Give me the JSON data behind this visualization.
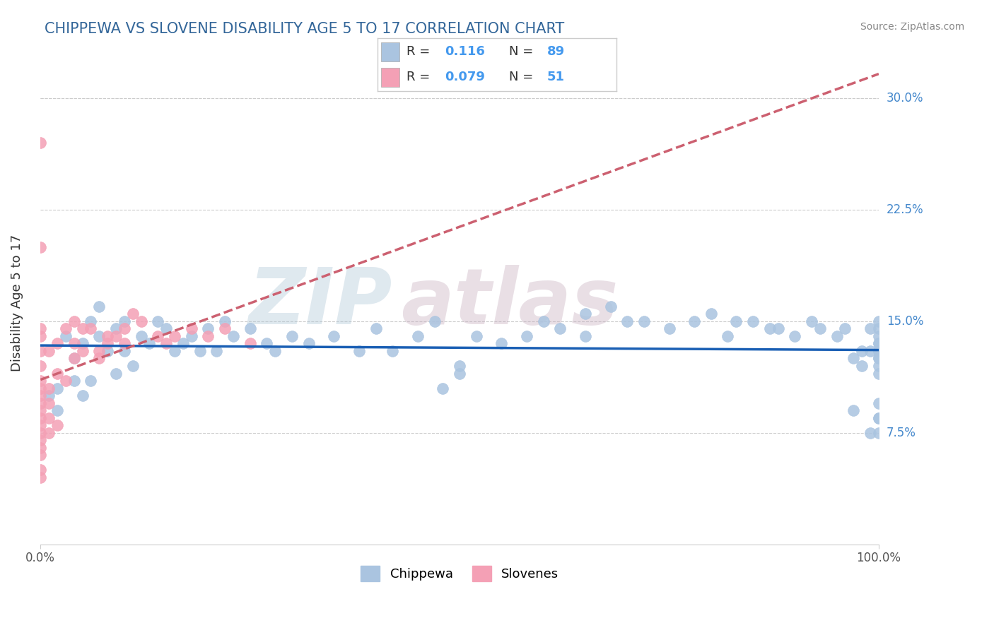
{
  "title": "CHIPPEWA VS SLOVENE DISABILITY AGE 5 TO 17 CORRELATION CHART",
  "source_text": "Source: ZipAtlas.com",
  "ylabel": "Disability Age 5 to 17",
  "xlim": [
    0,
    100
  ],
  "ylim": [
    0,
    32.5
  ],
  "yticks": [
    7.5,
    15.0,
    22.5,
    30.0
  ],
  "xticks": [
    0,
    100
  ],
  "xtick_labels": [
    "0.0%",
    "100.0%"
  ],
  "right_ytick_labels": [
    "7.5%",
    "15.0%",
    "22.5%",
    "30.0%"
  ],
  "legend_label1": "Chippewa",
  "legend_label2": "Slovenes",
  "R1": "0.116",
  "N1": "89",
  "R2": "0.079",
  "N2": "51",
  "color1": "#aac4e0",
  "color2": "#f4a0b5",
  "trendline1_color": "#1a5fb4",
  "trendline2_color": "#cc6070",
  "background_color": "#ffffff",
  "watermark_zip_color": "#b0c8d8",
  "watermark_atlas_color": "#c8b0c0",
  "chippewa_x": [
    1,
    2,
    2,
    3,
    4,
    4,
    5,
    5,
    6,
    6,
    7,
    7,
    8,
    9,
    9,
    10,
    10,
    11,
    12,
    13,
    14,
    15,
    16,
    17,
    18,
    19,
    20,
    21,
    22,
    23,
    25,
    27,
    28,
    30,
    32,
    35,
    38,
    40,
    42,
    45,
    47,
    48,
    50,
    50,
    52,
    55,
    58,
    60,
    62,
    65,
    65,
    68,
    70,
    72,
    75,
    78,
    80,
    82,
    83,
    85,
    87,
    88,
    90,
    92,
    93,
    95,
    96,
    97,
    97,
    98,
    98,
    99,
    99,
    99,
    100,
    100,
    100,
    100,
    100,
    100,
    100,
    100,
    100,
    100,
    100,
    100,
    100,
    100,
    100
  ],
  "chippewa_y": [
    10.0,
    10.5,
    9.0,
    14.0,
    11.0,
    12.5,
    10.0,
    13.5,
    11.0,
    15.0,
    14.0,
    16.0,
    13.0,
    11.5,
    14.5,
    13.0,
    15.0,
    12.0,
    14.0,
    13.5,
    15.0,
    14.5,
    13.0,
    13.5,
    14.0,
    13.0,
    14.5,
    13.0,
    15.0,
    14.0,
    14.5,
    13.5,
    13.0,
    14.0,
    13.5,
    14.0,
    13.0,
    14.5,
    13.0,
    14.0,
    15.0,
    10.5,
    12.0,
    11.5,
    14.0,
    13.5,
    14.0,
    15.0,
    14.5,
    15.5,
    14.0,
    16.0,
    15.0,
    15.0,
    14.5,
    15.0,
    15.5,
    14.0,
    15.0,
    15.0,
    14.5,
    14.5,
    14.0,
    15.0,
    14.5,
    14.0,
    14.5,
    9.0,
    12.5,
    13.0,
    12.0,
    14.5,
    13.0,
    7.5,
    12.5,
    14.5,
    8.5,
    15.0,
    7.5,
    8.5,
    9.5,
    13.0,
    12.5,
    13.0,
    12.0,
    14.0,
    13.5,
    11.5,
    13.5
  ],
  "slovene_x": [
    0,
    0,
    0,
    0,
    0,
    0,
    0,
    0,
    0,
    0,
    0,
    0,
    0,
    0,
    0,
    0,
    0,
    0,
    0,
    1,
    1,
    1,
    1,
    1,
    2,
    2,
    2,
    3,
    3,
    4,
    4,
    4,
    5,
    5,
    6,
    7,
    7,
    8,
    8,
    9,
    10,
    10,
    11,
    12,
    14,
    15,
    16,
    18,
    20,
    22,
    25
  ],
  "slovene_y": [
    4.5,
    5.0,
    6.0,
    6.5,
    7.0,
    7.5,
    8.0,
    8.5,
    9.0,
    9.5,
    10.0,
    10.5,
    11.0,
    12.0,
    13.0,
    14.0,
    20.0,
    27.0,
    14.5,
    7.5,
    8.5,
    9.5,
    10.5,
    13.0,
    8.0,
    11.5,
    13.5,
    11.0,
    14.5,
    12.5,
    13.5,
    15.0,
    13.0,
    14.5,
    14.5,
    12.5,
    13.0,
    13.5,
    14.0,
    14.0,
    13.5,
    14.5,
    15.5,
    15.0,
    14.0,
    13.5,
    14.0,
    14.5,
    14.0,
    14.5,
    13.5
  ]
}
